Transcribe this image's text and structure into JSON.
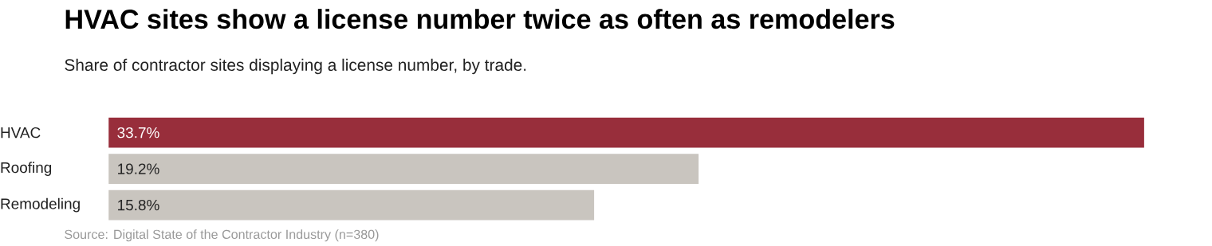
{
  "chart_data": {
    "type": "bar",
    "orientation": "horizontal",
    "title": "HVAC sites show a license number twice as often as remodelers",
    "subtitle": "Share of contractor sites displaying a license number, by trade.",
    "categories": [
      "HVAC",
      "Roofing",
      "Remodeling"
    ],
    "values": [
      33.7,
      19.2,
      15.8
    ],
    "value_labels": [
      "33.7%",
      "19.2%",
      "15.8%"
    ],
    "colors": [
      "#982e3b",
      "#c9c5bf",
      "#c9c5bf"
    ],
    "annotations": [
      "Source: Digital State of the Contractor Industry (n=380)"
    ]
  }
}
